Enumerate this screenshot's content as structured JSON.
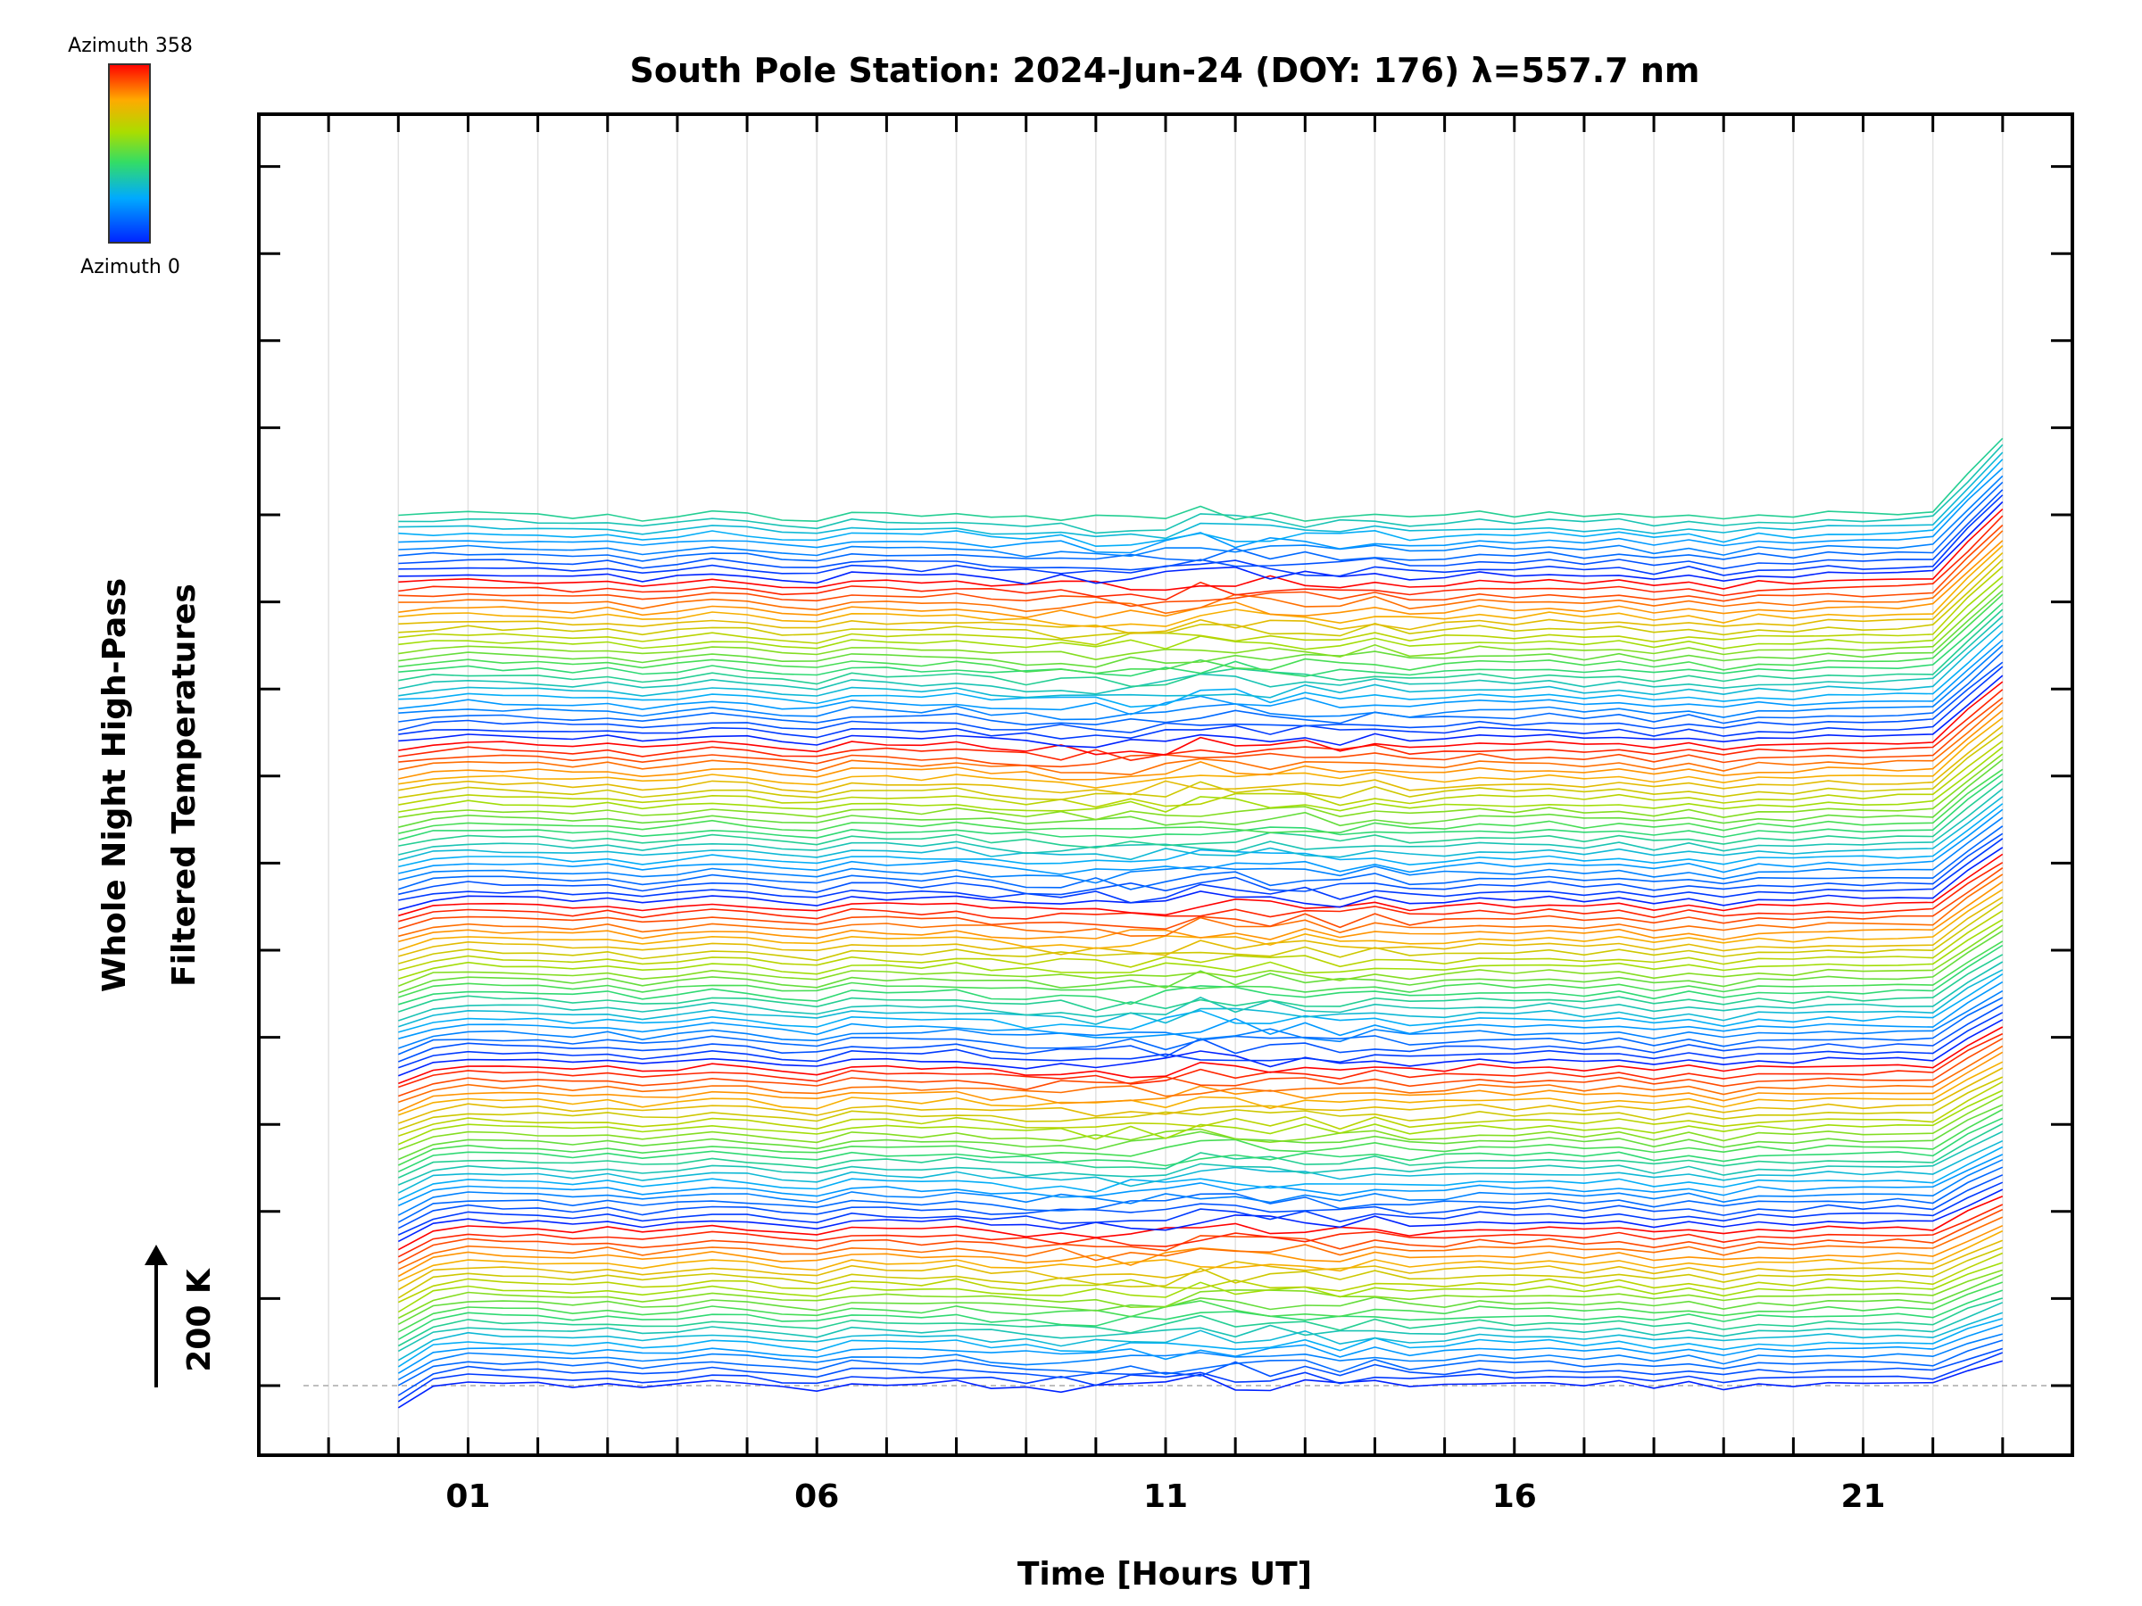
{
  "chart_data": {
    "type": "line",
    "title": "South Pole Station: 2024-Jun-24 (DOY: 176) λ=557.7 nm",
    "xlabel": "Time [Hours UT]",
    "ylabel": [
      "Whole Night High-Pass",
      "Filtered Temperatures"
    ],
    "scale_label": "200 K",
    "xlim": [
      -2.0,
      24.0
    ],
    "x_ticks": [
      1,
      6,
      11,
      16,
      21
    ],
    "x_tick_labels": [
      "01",
      "06",
      "11",
      "16",
      "21"
    ],
    "time_start": 0.0,
    "time_end": 22.75,
    "sample_step_hours": 0.5,
    "n_traces": 130,
    "azimuth_range": [
      0,
      358
    ],
    "traces_per_color_cycle": 24,
    "trace_offset_K": 33,
    "colorbar": {
      "top_label": "Azimuth 358",
      "bottom_label": "Azimuth 0",
      "colormap": "rainbow"
    }
  }
}
